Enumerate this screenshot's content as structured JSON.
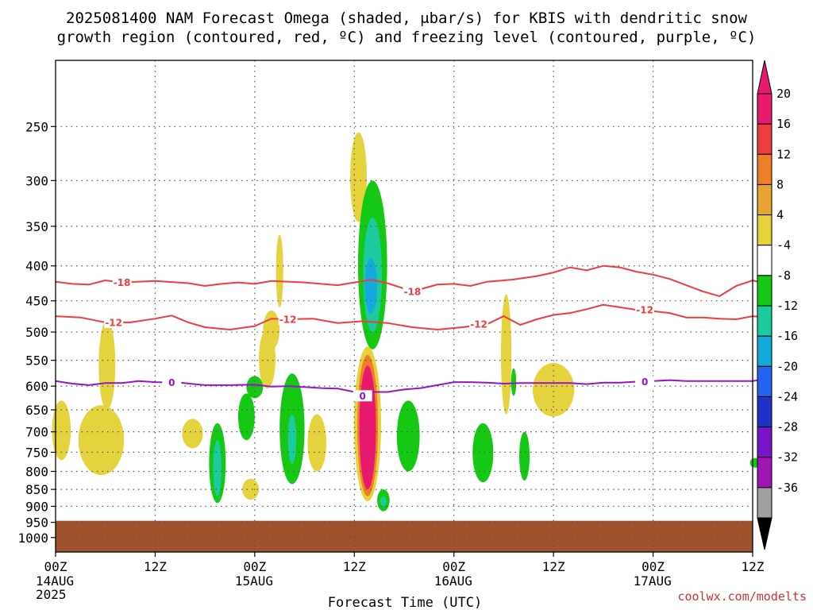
{
  "chart_data": {
    "type": "heatmap",
    "title_line1": "2025081400 NAM Forecast Omega (shaded, μbar/s) for KBIS with dendritic snow",
    "title_line2": "growth region (contoured, red, ºC) and freezing level (contoured, purple, ºC)",
    "xlabel": "Forecast Time (UTC)",
    "ylabel": "",
    "credit": "coolwx.com/modelts",
    "x_hours_range": [
      0,
      84
    ],
    "y_range_hpa": [
      1050,
      200
    ],
    "y_ticks": [
      250,
      300,
      350,
      400,
      450,
      500,
      550,
      600,
      650,
      700,
      750,
      800,
      850,
      900,
      950,
      1000
    ],
    "x_ticks": [
      {
        "h": 0,
        "label": "00Z",
        "date": "14AUG",
        "year": "2025"
      },
      {
        "h": 12,
        "label": "12Z",
        "date": "",
        "year": ""
      },
      {
        "h": 24,
        "label": "00Z",
        "date": "15AUG",
        "year": ""
      },
      {
        "h": 36,
        "label": "12Z",
        "date": "",
        "year": ""
      },
      {
        "h": 48,
        "label": "00Z",
        "date": "16AUG",
        "year": ""
      },
      {
        "h": 60,
        "label": "12Z",
        "date": "",
        "year": ""
      },
      {
        "h": 72,
        "label": "00Z",
        "date": "17AUG",
        "year": ""
      },
      {
        "h": 84,
        "label": "12Z",
        "date": "",
        "year": ""
      }
    ],
    "colorbar": {
      "labels": [
        "20",
        "16",
        "12",
        "8",
        "4",
        "-4",
        "-8",
        "-12",
        "-16",
        "-20",
        "-24",
        "-28",
        "-32",
        "-36"
      ],
      "colors": [
        "#e8196e",
        "#f03c3c",
        "#f07d28",
        "#e6a532",
        "#e6d23c",
        "#ffffff",
        "#14c814",
        "#1ecba0",
        "#14aadc",
        "#2364f0",
        "#1e32c8",
        "#7814c8",
        "#a014b4",
        "#a0a0a0"
      ],
      "top_arrow_color": "#e8196e",
      "bottom_arrow_color": "#000000"
    },
    "ground": {
      "color": "#a0522d",
      "top_hpa": 945
    },
    "series": [
      {
        "name": "-18",
        "color": "#f03c3c",
        "label_hours": [
          8,
          43
        ],
        "points": [
          [
            0,
            422
          ],
          [
            2,
            425
          ],
          [
            4,
            426
          ],
          [
            6,
            420
          ],
          [
            8,
            423
          ],
          [
            12,
            421
          ],
          [
            16,
            424
          ],
          [
            18,
            428
          ],
          [
            20,
            425
          ],
          [
            22,
            423
          ],
          [
            24,
            425
          ],
          [
            26,
            421
          ],
          [
            30,
            423
          ],
          [
            34,
            427
          ],
          [
            36,
            423
          ],
          [
            38,
            419
          ],
          [
            40,
            424
          ],
          [
            43,
            436
          ],
          [
            46,
            426
          ],
          [
            48,
            425
          ],
          [
            50,
            428
          ],
          [
            52,
            422
          ],
          [
            55,
            419
          ],
          [
            58,
            414
          ],
          [
            60,
            409
          ],
          [
            62,
            402
          ],
          [
            64,
            406
          ],
          [
            66,
            400
          ],
          [
            68,
            402
          ],
          [
            70,
            408
          ],
          [
            72,
            412
          ],
          [
            74,
            418
          ],
          [
            76,
            427
          ],
          [
            78,
            436
          ],
          [
            80,
            443
          ],
          [
            82,
            428
          ],
          [
            84,
            420
          ],
          [
            85,
            423
          ]
        ]
      },
      {
        "name": "-12",
        "color": "#f03c3c",
        "label_hours": [
          7,
          28,
          51,
          71
        ],
        "points": [
          [
            0,
            474
          ],
          [
            3,
            476
          ],
          [
            6,
            484
          ],
          [
            9,
            484
          ],
          [
            12,
            478
          ],
          [
            14,
            473
          ],
          [
            16,
            484
          ],
          [
            18,
            492
          ],
          [
            21,
            496
          ],
          [
            24,
            490
          ],
          [
            26,
            478
          ],
          [
            28,
            479
          ],
          [
            31,
            478
          ],
          [
            34,
            485
          ],
          [
            37,
            482
          ],
          [
            40,
            485
          ],
          [
            43,
            492
          ],
          [
            46,
            496
          ],
          [
            49,
            492
          ],
          [
            52,
            487
          ],
          [
            54,
            474
          ],
          [
            56,
            488
          ],
          [
            58,
            479
          ],
          [
            60,
            472
          ],
          [
            62,
            469
          ],
          [
            64,
            463
          ],
          [
            66,
            456
          ],
          [
            68,
            460
          ],
          [
            70,
            464
          ],
          [
            72,
            466
          ],
          [
            74,
            469
          ],
          [
            76,
            476
          ],
          [
            78,
            476
          ],
          [
            80,
            478
          ],
          [
            82,
            479
          ],
          [
            84,
            474
          ],
          [
            85,
            475
          ]
        ]
      },
      {
        "name": "0",
        "color": "#9614c8",
        "label_hours": [
          14,
          37,
          71
        ],
        "points": [
          [
            0,
            590
          ],
          [
            2,
            595
          ],
          [
            4,
            598
          ],
          [
            6,
            594
          ],
          [
            8,
            594
          ],
          [
            10,
            590
          ],
          [
            12,
            592
          ],
          [
            15,
            593
          ],
          [
            18,
            598
          ],
          [
            21,
            598
          ],
          [
            24,
            597
          ],
          [
            26,
            601
          ],
          [
            28,
            600
          ],
          [
            30,
            602
          ],
          [
            32,
            604
          ],
          [
            34,
            605
          ],
          [
            36,
            612
          ],
          [
            37,
            620
          ],
          [
            38,
            612
          ],
          [
            40,
            612
          ],
          [
            42,
            607
          ],
          [
            44,
            604
          ],
          [
            46,
            598
          ],
          [
            48,
            592
          ],
          [
            50,
            592
          ],
          [
            52,
            593
          ],
          [
            54,
            595
          ],
          [
            56,
            594
          ],
          [
            58,
            594
          ],
          [
            60,
            594
          ],
          [
            62,
            594
          ],
          [
            64,
            596
          ],
          [
            66,
            593
          ],
          [
            68,
            593
          ],
          [
            70,
            591
          ],
          [
            72,
            590
          ],
          [
            74,
            588
          ],
          [
            76,
            590
          ],
          [
            78,
            590
          ],
          [
            80,
            590
          ],
          [
            82,
            590
          ],
          [
            84,
            590
          ],
          [
            85,
            587
          ]
        ]
      }
    ],
    "omega_features": [
      {
        "h": 36.5,
        "w": 0.8,
        "top": 255,
        "bottom": 345,
        "level": 4
      },
      {
        "h": 38.2,
        "w": 1.4,
        "top": 300,
        "bottom": 530,
        "level": -8
      },
      {
        "h": 38.2,
        "w": 0.9,
        "top": 340,
        "bottom": 500,
        "level": -12
      },
      {
        "h": 38.0,
        "w": 0.6,
        "top": 390,
        "bottom": 470,
        "level": -16
      },
      {
        "h": 37.6,
        "w": 1.3,
        "top": 525,
        "bottom": 885,
        "level": 4
      },
      {
        "h": 37.6,
        "w": 1.0,
        "top": 540,
        "bottom": 870,
        "level": 12
      },
      {
        "h": 37.6,
        "w": 0.8,
        "top": 560,
        "bottom": 850,
        "level": 20
      },
      {
        "h": 39.5,
        "w": 0.6,
        "top": 850,
        "bottom": 915,
        "level": -8
      },
      {
        "h": 39.5,
        "w": 0.3,
        "top": 870,
        "bottom": 900,
        "level": -12
      },
      {
        "h": 42.5,
        "w": 1.1,
        "top": 630,
        "bottom": 800,
        "level": -8
      },
      {
        "h": 0.7,
        "w": 0.9,
        "top": 630,
        "bottom": 770,
        "level": 4
      },
      {
        "h": 5.5,
        "w": 2.2,
        "top": 640,
        "bottom": 810,
        "level": 4
      },
      {
        "h": 6.2,
        "w": 0.8,
        "top": 480,
        "bottom": 650,
        "level": 4
      },
      {
        "h": 16.5,
        "w": 1.0,
        "top": 670,
        "bottom": 740,
        "level": 4
      },
      {
        "h": 19.5,
        "w": 0.8,
        "top": 680,
        "bottom": 890,
        "level": -8
      },
      {
        "h": 19.5,
        "w": 0.4,
        "top": 720,
        "bottom": 870,
        "level": -12
      },
      {
        "h": 23.0,
        "w": 0.8,
        "top": 615,
        "bottom": 720,
        "level": -8
      },
      {
        "h": 24.0,
        "w": 0.8,
        "top": 580,
        "bottom": 625,
        "level": -8
      },
      {
        "h": 25.5,
        "w": 0.8,
        "top": 495,
        "bottom": 605,
        "level": 4
      },
      {
        "h": 26.0,
        "w": 0.8,
        "top": 465,
        "bottom": 530,
        "level": 4
      },
      {
        "h": 28.5,
        "w": 1.2,
        "top": 575,
        "bottom": 835,
        "level": -8
      },
      {
        "h": 28.5,
        "w": 0.4,
        "top": 660,
        "bottom": 780,
        "level": -12
      },
      {
        "h": 31.5,
        "w": 0.9,
        "top": 660,
        "bottom": 800,
        "level": 4
      },
      {
        "h": 23.5,
        "w": 0.8,
        "top": 820,
        "bottom": 880,
        "level": 4
      },
      {
        "h": 27.0,
        "w": 0.35,
        "top": 360,
        "bottom": 460,
        "level": 4
      },
      {
        "h": 51.5,
        "w": 1.0,
        "top": 680,
        "bottom": 830,
        "level": -8
      },
      {
        "h": 54.3,
        "w": 0.5,
        "top": 440,
        "bottom": 660,
        "level": 4
      },
      {
        "h": 55.2,
        "w": 0.25,
        "top": 565,
        "bottom": 620,
        "level": -8
      },
      {
        "h": 56.5,
        "w": 0.5,
        "top": 700,
        "bottom": 825,
        "level": -8
      },
      {
        "h": 60.0,
        "w": 2.0,
        "top": 555,
        "bottom": 665,
        "level": 4
      },
      {
        "h": 84.3,
        "w": 0.5,
        "top": 765,
        "bottom": 790,
        "level": -8
      }
    ]
  }
}
